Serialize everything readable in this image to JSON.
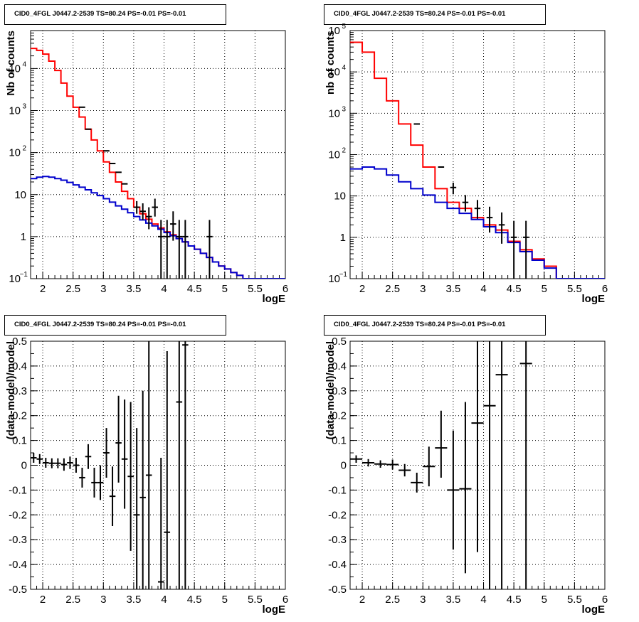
{
  "chart_data": [
    {
      "type": "line",
      "subtype": "histogram-step",
      "title": "CID0_4FGL J0447.2-2539 TS=80.24 PS=-0.01 PS=-0.01",
      "xlabel": "logE",
      "ylabel": "Nb of counts",
      "yscale": "log",
      "xlim": [
        1.8,
        6.0
      ],
      "ylim": [
        0.1,
        80000
      ],
      "grid": true,
      "xtick_labels": [
        "2",
        "2.5",
        "3",
        "3.5",
        "4",
        "4.5",
        "5",
        "5.5",
        "6"
      ],
      "ytick_labels": [
        "1",
        "10",
        "10^2",
        "10^3",
        "10^4"
      ],
      "bin_edges": [
        1.8,
        1.9,
        2.0,
        2.1,
        2.2,
        2.3,
        2.4,
        2.5,
        2.6,
        2.7,
        2.8,
        2.9,
        3.0,
        3.1,
        3.2,
        3.3,
        3.4,
        3.5,
        3.6,
        3.7,
        3.8,
        3.9,
        4.0,
        4.1,
        4.2,
        4.3,
        4.4,
        4.5,
        4.6,
        4.7,
        4.8,
        4.9,
        5.0,
        5.1,
        5.2,
        5.3,
        5.4,
        5.5,
        5.6,
        5.7,
        5.8,
        5.9,
        6.0
      ],
      "series": [
        {
          "color": "#ff0000",
          "values": [
            30000,
            27000,
            22000,
            15000,
            9000,
            4500,
            2200,
            1200,
            700,
            360,
            200,
            110,
            60,
            34,
            20,
            12,
            8,
            5,
            3.5,
            2.6,
            2.0,
            1.6,
            1.3,
            1.1,
            0.9,
            0.75,
            0.6,
            0.5,
            0.4,
            0.32,
            0.25,
            0.2,
            0.17,
            0.14,
            0.12,
            0.1,
            0.1,
            0.1,
            0.1,
            0.1,
            0.1,
            0.1
          ]
        },
        {
          "color": "#0000cc",
          "values": [
            24,
            26,
            27,
            26,
            24,
            22,
            19.5,
            17,
            15,
            13,
            11,
            9.5,
            8,
            6.6,
            5.4,
            4.5,
            3.7,
            3.0,
            2.5,
            2.1,
            1.8,
            1.5,
            1.25,
            1.05,
            0.9,
            0.75,
            0.6,
            0.5,
            0.4,
            0.32,
            0.25,
            0.2,
            0.17,
            0.14,
            0.12,
            0.1,
            0.1,
            0.1,
            0.1,
            0.1,
            0.1,
            0.1
          ]
        },
        {
          "type": "scatter",
          "color": "#000000",
          "x": [
            2.65,
            2.75,
            3.05,
            3.15,
            3.25,
            3.35,
            3.55,
            3.65,
            3.75,
            3.85,
            3.95,
            4.05,
            4.15,
            4.25,
            4.35,
            4.75
          ],
          "values": [
            1200,
            360,
            110,
            55,
            34,
            18,
            5,
            4,
            3,
            5,
            1,
            1,
            2,
            1,
            1,
            1
          ],
          "err_low": [
            0,
            0,
            0,
            0,
            0,
            0,
            1.5,
            1.5,
            1.5,
            2,
            0.9,
            0.9,
            1.2,
            0.9,
            0.9,
            0.9
          ],
          "err_high": [
            0,
            0,
            0,
            0,
            0,
            0,
            2,
            2.2,
            2,
            3,
            1.5,
            1.5,
            2,
            1.5,
            1.5,
            1.5
          ]
        }
      ]
    },
    {
      "type": "line",
      "subtype": "histogram-step",
      "title": "CID0_4FGL J0447.2-2539 TS=80.24 PS=-0.01 PS=-0.01",
      "xlabel": "logE",
      "ylabel": "nb of counts",
      "yscale": "log",
      "xlim": [
        1.8,
        6.0
      ],
      "ylim": [
        0.1,
        100000
      ],
      "grid": true,
      "xtick_labels": [
        "2",
        "2.5",
        "3",
        "3.5",
        "4",
        "4.5",
        "5",
        "5.5",
        "6"
      ],
      "ytick_labels": [
        "1",
        "10",
        "10^2",
        "10^3",
        "10^4",
        "10^5"
      ],
      "bin_edges": [
        1.8,
        2.0,
        2.2,
        2.4,
        2.6,
        2.8,
        3.0,
        3.2,
        3.4,
        3.6,
        3.8,
        4.0,
        4.2,
        4.4,
        4.6,
        4.8,
        5.0,
        5.2,
        5.4,
        5.6,
        5.8,
        6.0
      ],
      "series": [
        {
          "color": "#ff0000",
          "values": [
            52000,
            30000,
            7000,
            2000,
            550,
            170,
            50,
            15,
            7,
            5,
            3,
            2,
            1.5,
            0.8,
            0.5,
            0.3,
            0.2,
            0.1,
            0.1,
            0.1,
            0.1
          ]
        },
        {
          "color": "#0000cc",
          "values": [
            45,
            50,
            45,
            32,
            22,
            15,
            10.5,
            7,
            5,
            3.8,
            2.7,
            1.8,
            1.3,
            0.75,
            0.45,
            0.28,
            0.18,
            0.1,
            0.1,
            0.1,
            0.1
          ]
        },
        {
          "type": "scatter",
          "color": "#000000",
          "x": [
            2.9,
            3.3,
            3.5,
            3.7,
            3.9,
            4.1,
            4.3,
            4.5,
            4.7
          ],
          "values": [
            550,
            50,
            16,
            7,
            5,
            3,
            2,
            1,
            1
          ],
          "err_low": [
            0,
            0,
            5,
            2.8,
            2.2,
            1.7,
            1.3,
            0.9,
            0.9
          ],
          "err_high": [
            0,
            0,
            5,
            3.5,
            3,
            2.5,
            2,
            1.5,
            1.5
          ]
        }
      ]
    },
    {
      "type": "scatter",
      "title": "CID0_4FGL J0447.2-2539 TS=80.24 PS=-0.01 PS=-0.01",
      "xlabel": "logE",
      "ylabel": "(data-model)/model",
      "xlim": [
        1.8,
        6.0
      ],
      "ylim": [
        -0.5,
        0.5
      ],
      "grid": true,
      "xtick_labels": [
        "2",
        "2.5",
        "3",
        "3.5",
        "4",
        "4.5",
        "5",
        "5.5",
        "6"
      ],
      "ytick_labels": [
        "-0.5",
        "-0.4",
        "-0.3",
        "-0.2",
        "-0.1",
        "0",
        "0.1",
        "0.2",
        "0.3",
        "0.4",
        "0.5"
      ],
      "bin_width": 0.1,
      "series": [
        {
          "color": "#000000",
          "x": [
            1.85,
            1.95,
            2.05,
            2.15,
            2.25,
            2.35,
            2.45,
            2.55,
            2.65,
            2.75,
            2.85,
            2.95,
            3.05,
            3.15,
            3.25,
            3.35,
            3.45,
            3.55,
            3.65,
            3.75,
            3.95,
            4.05,
            4.25,
            4.35
          ],
          "values": [
            0.03,
            0.025,
            0.01,
            0.008,
            0.008,
            0.003,
            0.01,
            0.0,
            -0.05,
            0.035,
            -0.07,
            -0.07,
            0.05,
            -0.125,
            0.09,
            0.025,
            -0.045,
            -0.2,
            -0.13,
            -0.04,
            -0.47,
            -0.27,
            0.255,
            0.485
          ],
          "err_low": [
            0.02,
            0.02,
            0.02,
            0.02,
            0.02,
            0.025,
            0.025,
            0.03,
            0.04,
            0.05,
            0.06,
            0.07,
            0.1,
            0.12,
            0.16,
            0.2,
            0.3,
            0.35,
            0.45,
            0.6,
            0.5,
            0.5,
            0.8,
            0.99
          ],
          "err_high": [
            0.02,
            0.02,
            0.02,
            0.02,
            0.02,
            0.025,
            0.025,
            0.03,
            0.04,
            0.05,
            0.06,
            0.07,
            0.1,
            0.12,
            0.19,
            0.24,
            0.3,
            0.35,
            0.43,
            0.6,
            0.5,
            0.73,
            0.8,
            0.99
          ]
        }
      ]
    },
    {
      "type": "scatter",
      "title": "CID0_4FGL J0447.2-2539 TS=80.24 PS=-0.01 PS=-0.01",
      "xlabel": "logE",
      "ylabel": "(data-model)/model",
      "xlim": [
        1.8,
        6.0
      ],
      "ylim": [
        -0.5,
        0.5
      ],
      "grid": true,
      "xtick_labels": [
        "2",
        "2.5",
        "3",
        "3.5",
        "4",
        "4.5",
        "5",
        "5.5",
        "6"
      ],
      "ytick_labels": [
        "-0.5",
        "-0.4",
        "-0.3",
        "-0.2",
        "-0.1",
        "0",
        "0.1",
        "0.2",
        "0.3",
        "0.4",
        "0.5"
      ],
      "bin_width": 0.2,
      "series": [
        {
          "color": "#000000",
          "x": [
            1.9,
            2.1,
            2.3,
            2.5,
            2.7,
            2.9,
            3.1,
            3.3,
            3.5,
            3.7,
            3.9,
            4.1,
            4.3,
            4.7
          ],
          "values": [
            0.025,
            0.01,
            0.005,
            0.003,
            -0.02,
            -0.07,
            -0.005,
            0.07,
            -0.1,
            -0.095,
            0.17,
            0.24,
            0.365,
            0.41
          ],
          "err_low": [
            0.015,
            0.015,
            0.015,
            0.02,
            0.025,
            0.04,
            0.08,
            0.12,
            0.24,
            0.34,
            0.52,
            0.75,
            0.9,
            0.95
          ],
          "err_high": [
            0.015,
            0.015,
            0.015,
            0.02,
            0.025,
            0.04,
            0.08,
            0.15,
            0.24,
            0.35,
            0.6,
            0.75,
            0.9,
            0.95
          ]
        }
      ]
    }
  ]
}
